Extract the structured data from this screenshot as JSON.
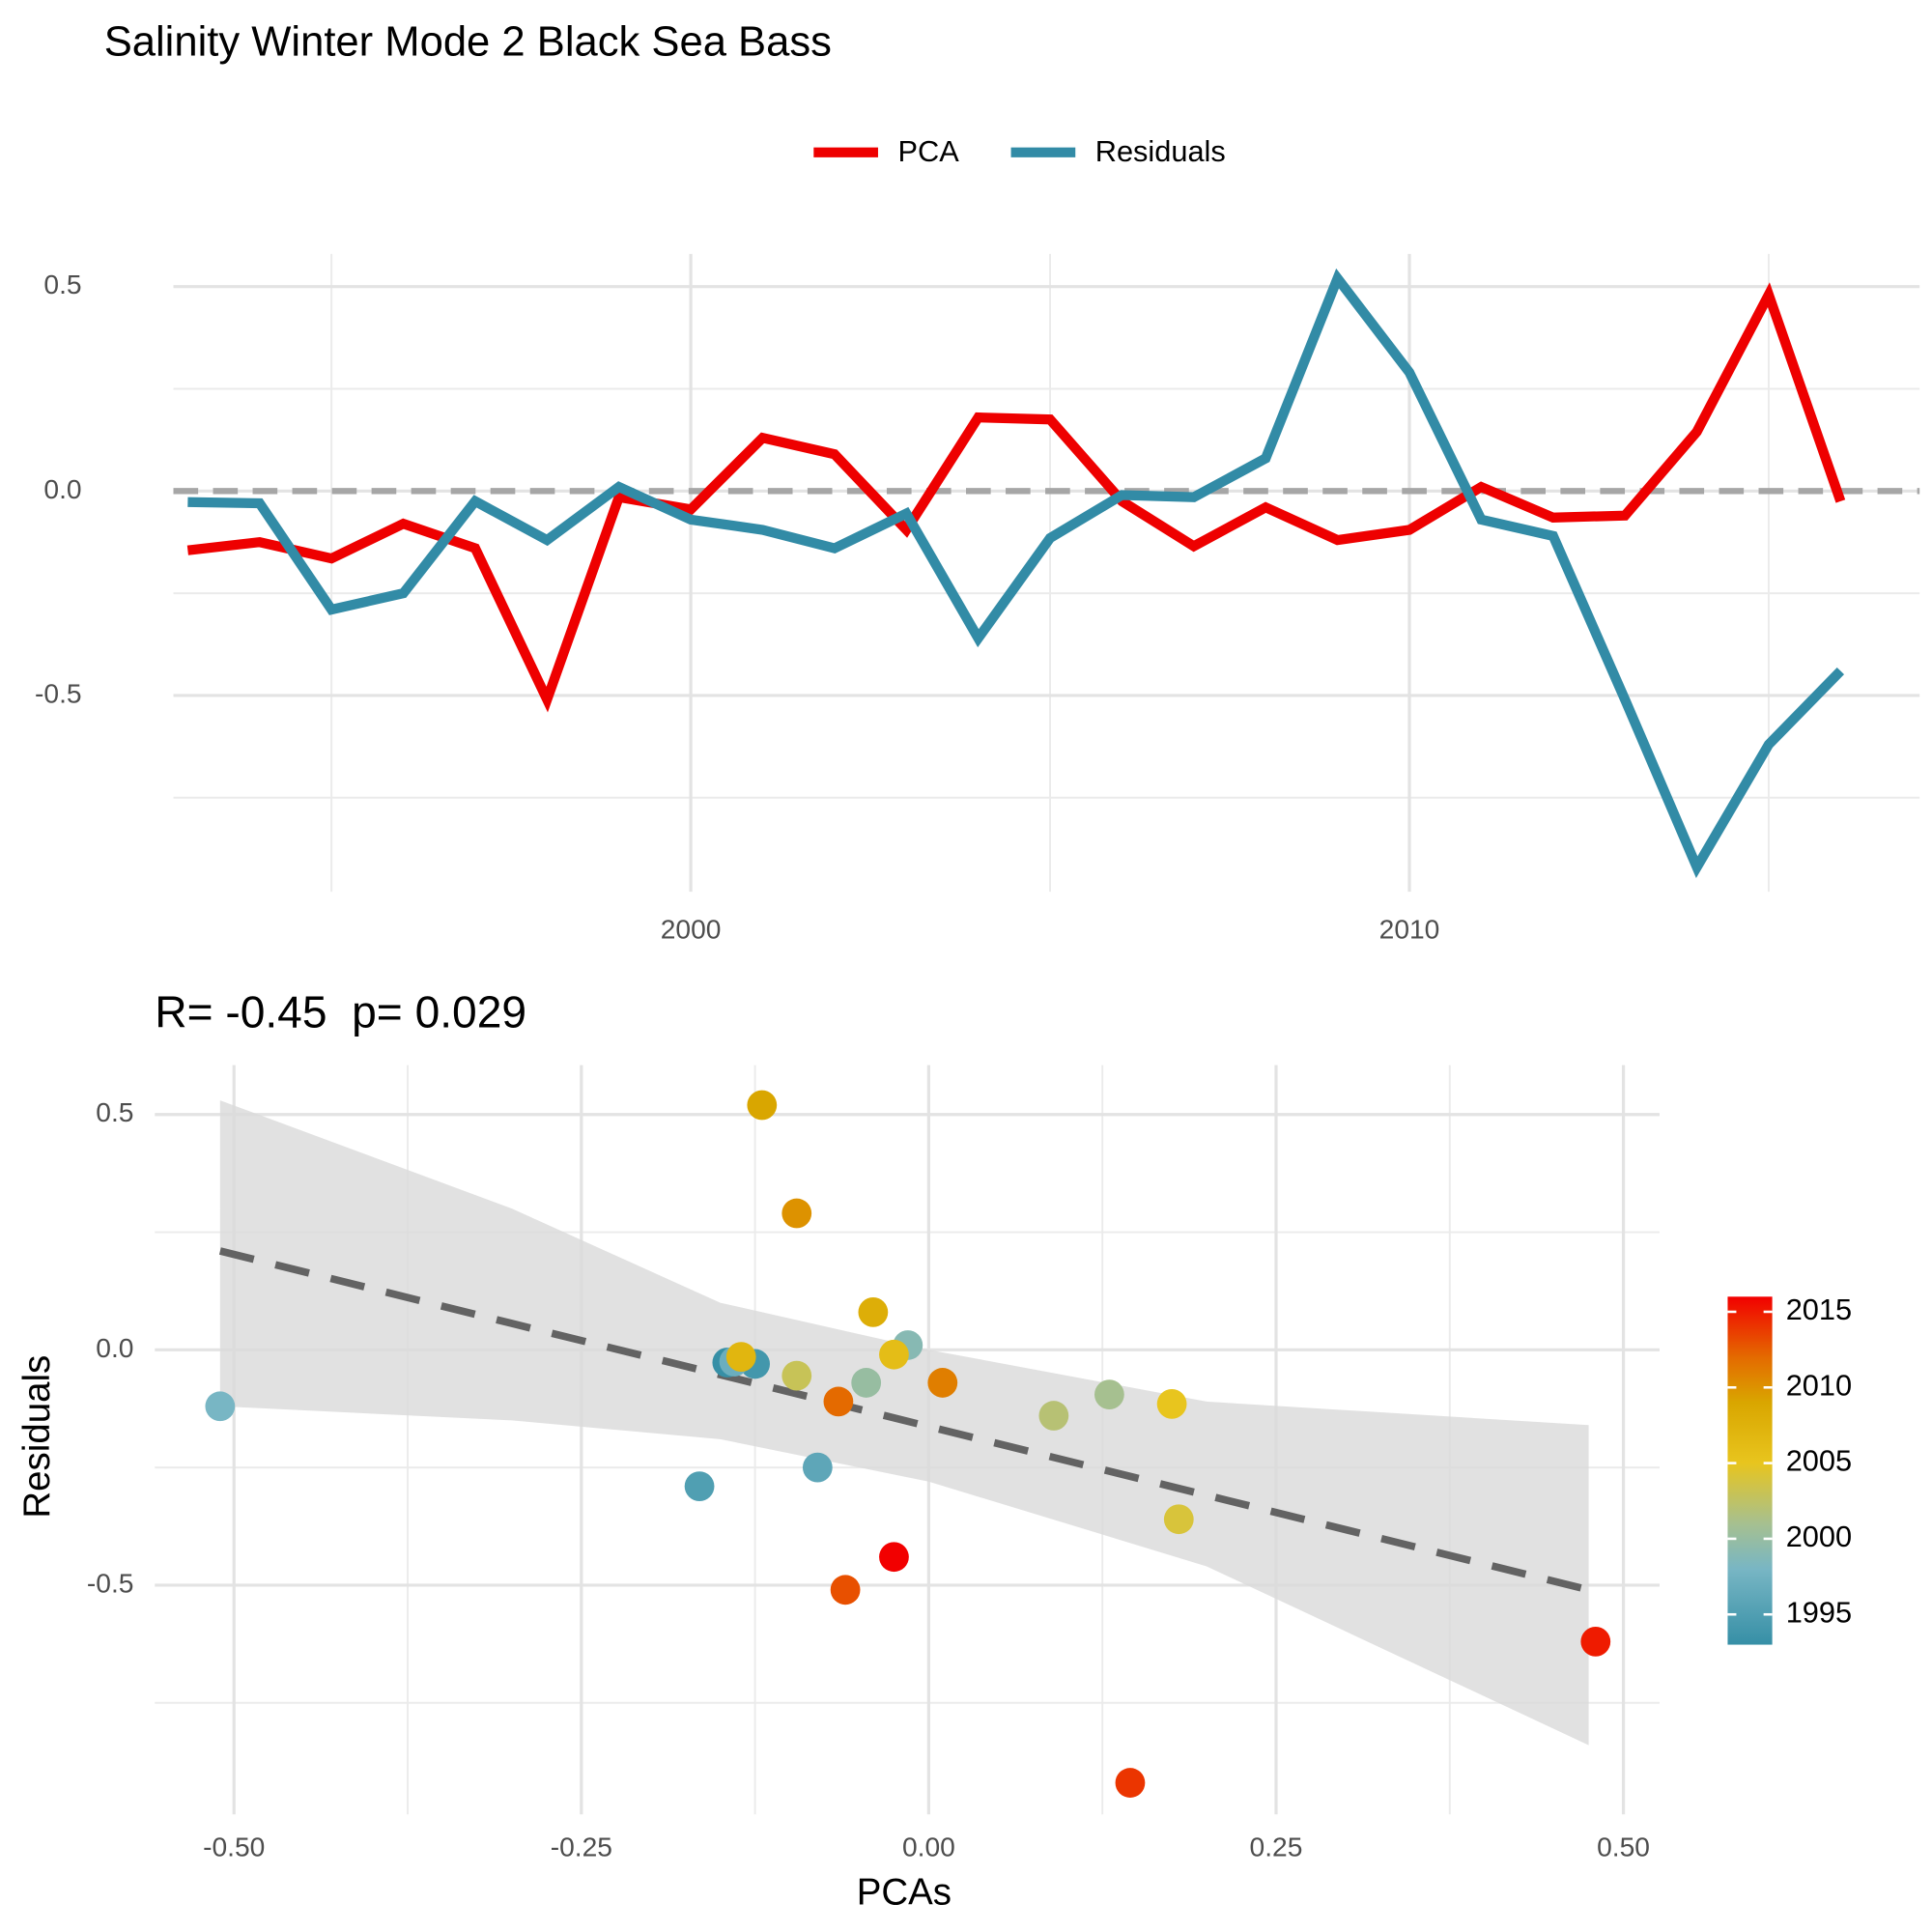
{
  "chart_data": [
    {
      "type": "line",
      "title": "Salinity Winter Mode 2 Black Sea Bass",
      "legend": "top",
      "x": [
        1993,
        1994,
        1995,
        1996,
        1997,
        1998,
        1999,
        2000,
        2001,
        2002,
        2003,
        2004,
        2005,
        2006,
        2007,
        2008,
        2009,
        2010,
        2011,
        2012,
        2013,
        2014,
        2015,
        2016
      ],
      "series": [
        {
          "name": "PCA",
          "color": "#ee0000",
          "values": [
            -0.145,
            -0.125,
            -0.165,
            -0.08,
            -0.14,
            -0.51,
            -0.015,
            -0.045,
            0.13,
            0.09,
            -0.095,
            0.18,
            0.175,
            -0.025,
            -0.135,
            -0.04,
            -0.12,
            -0.095,
            0.01,
            -0.065,
            -0.06,
            0.145,
            0.48,
            -0.025
          ]
        },
        {
          "name": "Residuals",
          "color": "#328ba6",
          "values": [
            -0.027,
            -0.03,
            -0.29,
            -0.25,
            -0.025,
            -0.12,
            0.01,
            -0.07,
            -0.095,
            -0.14,
            -0.055,
            -0.36,
            -0.115,
            -0.01,
            -0.015,
            0.08,
            0.52,
            0.29,
            -0.07,
            -0.11,
            -0.51,
            -0.92,
            -0.62,
            -0.44
          ]
        }
      ],
      "reference_line": 0,
      "xlim": [
        1992.8,
        2017.1
      ],
      "xticks": [
        2000,
        2010
      ],
      "x_minor_ticks": [
        1995,
        2005,
        2015
      ],
      "ylim": [
        -0.98,
        0.58
      ],
      "yticks": [
        -0.5,
        {
          "value": 0,
          "label": "0.0"
        },
        0.5
      ],
      "y_minor_ticks": [
        -0.75,
        -0.25,
        0.25
      ],
      "grid": true
    },
    {
      "type": "scatter",
      "title": "R= -0.45  p= 0.029",
      "x_label": "PCAs",
      "y_label": "Residuals",
      "x": [
        -0.145,
        -0.125,
        -0.165,
        -0.08,
        -0.14,
        -0.51,
        -0.015,
        -0.045,
        0.13,
        0.09,
        -0.095,
        0.18,
        0.175,
        -0.025,
        -0.135,
        -0.04,
        -0.12,
        -0.095,
        0.01,
        -0.065,
        -0.06,
        0.145,
        0.48,
        -0.025
      ],
      "y": [
        -0.027,
        -0.03,
        -0.29,
        -0.25,
        -0.025,
        -0.12,
        0.01,
        -0.07,
        -0.095,
        -0.14,
        -0.055,
        -0.36,
        -0.115,
        -0.01,
        -0.015,
        0.08,
        0.52,
        0.29,
        -0.07,
        -0.11,
        -0.51,
        -0.92,
        -0.62,
        -0.44
      ],
      "color_values": [
        1993,
        1994,
        1995,
        1996,
        1997,
        1998,
        1999,
        2000,
        2001,
        2002,
        2003,
        2004,
        2005,
        2006,
        2007,
        2008,
        2009,
        2010,
        2011,
        2012,
        2013,
        2014,
        2015,
        2016
      ],
      "colorbar": {
        "lim": [
          1993,
          2016
        ],
        "ticks": [
          1995,
          2000,
          2005,
          2010,
          2015
        ],
        "stops": [
          {
            "value": 1993,
            "color": "#368fa6"
          },
          {
            "value": 1998,
            "color": "#78b6c4"
          },
          {
            "value": 2001,
            "color": "#a6c090"
          },
          {
            "value": 2005,
            "color": "#e8c51e"
          },
          {
            "value": 2009,
            "color": "#d9a600"
          },
          {
            "value": 2012,
            "color": "#e46a00"
          },
          {
            "value": 2016,
            "color": "#f20000"
          }
        ]
      },
      "fit": {
        "x": [
          -0.51,
          -0.3,
          -0.15,
          0,
          0.2,
          0.475
        ],
        "y": [
          0.21,
          0.056,
          -0.053,
          -0.163,
          -0.309,
          -0.51
        ],
        "lower": [
          -0.12,
          -0.15,
          -0.19,
          -0.28,
          -0.46,
          -0.84
        ],
        "upper": [
          0.53,
          0.3,
          0.1,
          0.0,
          -0.11,
          -0.16
        ],
        "color": "#636363",
        "band_color": "#d9d9d9"
      },
      "xlim": [
        -0.557,
        0.526
      ],
      "xticks": [
        {
          "value": -0.5,
          "label": "-0.50"
        },
        {
          "value": -0.25,
          "label": "-0.25"
        },
        {
          "value": 0,
          "label": "0.00"
        },
        {
          "value": 0.25,
          "label": "0.25"
        },
        {
          "value": 0.5,
          "label": "0.50"
        }
      ],
      "x_minor_ticks": [
        -0.375,
        -0.125,
        0.125,
        0.375
      ],
      "ylim": [
        -0.987,
        0.605
      ],
      "yticks": [
        -0.5,
        {
          "value": 0,
          "label": "0.0"
        },
        0.5
      ],
      "y_minor_ticks": [
        -0.75,
        -0.25,
        0.25
      ],
      "grid": true
    }
  ]
}
